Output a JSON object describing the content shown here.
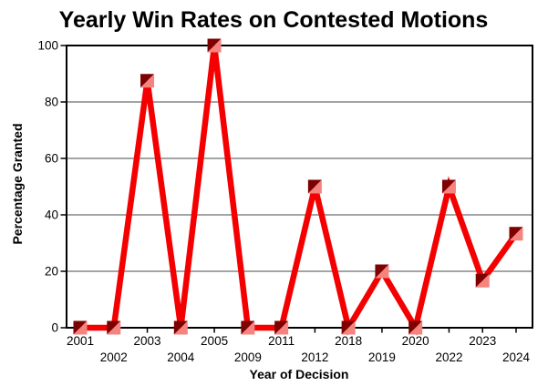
{
  "title": "Yearly Win Rates on Contested Motions",
  "chart_data": {
    "type": "line",
    "title": "Yearly Win Rates on Contested Motions",
    "xlabel": "Year of Decision",
    "ylabel": "Percentage Granted",
    "categories": [
      "2001",
      "2002",
      "2003",
      "2004",
      "2005",
      "2009",
      "2011",
      "2012",
      "2018",
      "2019",
      "2020",
      "2022",
      "2023",
      "2024"
    ],
    "series": [
      {
        "name": "Percentage Granted",
        "values": [
          0,
          0,
          87.5,
          0,
          100,
          0,
          0,
          50,
          0,
          20,
          0,
          50,
          16.7,
          33.3
        ]
      }
    ],
    "ylim": [
      0,
      100
    ],
    "yticks": [
      0,
      20,
      40,
      60,
      80,
      100
    ],
    "grid": true,
    "legend_position": "none",
    "line_color": "#f40000",
    "marker_dark_color": "#7d0101",
    "marker_light_color": "#f5837f",
    "grid_color": "#6e6e6e",
    "axis_color": "#000000",
    "background_color": "#ffffff"
  }
}
